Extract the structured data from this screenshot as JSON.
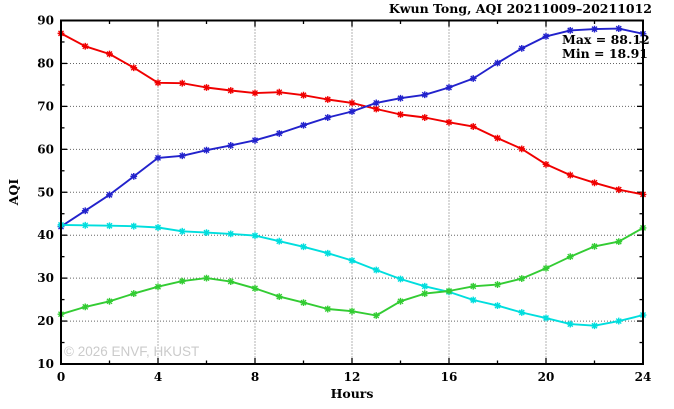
{
  "header": {
    "title": "Kwun Tong, AQI 20211009–20211012"
  },
  "annotation": {
    "max_label": "Max = 88.12",
    "min_label": "Min = 18.91"
  },
  "watermark": "© 2026 ENVF, HKUST",
  "chart_data": {
    "type": "line",
    "title": "Kwun Tong, AQI 20211009–20211012",
    "xlabel": "Hours",
    "ylabel": "AQI",
    "xlim": [
      0,
      24
    ],
    "ylim": [
      10,
      90
    ],
    "grid": true,
    "legend_position": "none",
    "x_major_ticks": [
      0,
      4,
      8,
      12,
      16,
      20,
      24
    ],
    "x_minor_ticks": [
      2,
      6,
      10,
      14,
      18,
      22
    ],
    "y_major_ticks": [
      10,
      20,
      30,
      40,
      50,
      60,
      70,
      80,
      90
    ],
    "y_minor_ticks": [
      15,
      25,
      35,
      45,
      55,
      65,
      75,
      85
    ],
    "x": [
      0,
      1,
      2,
      3,
      4,
      5,
      6,
      7,
      8,
      9,
      10,
      11,
      12,
      13,
      14,
      15,
      16,
      17,
      18,
      19,
      20,
      21,
      22,
      23,
      24
    ],
    "series": [
      {
        "name": "red-series",
        "color": "#f00000",
        "values": [
          87.0,
          84.0,
          82.2,
          79.0,
          75.5,
          75.4,
          74.4,
          73.7,
          73.1,
          73.3,
          72.6,
          71.6,
          70.8,
          69.4,
          68.1,
          67.4,
          66.3,
          65.3,
          62.6,
          60.1,
          56.5,
          54.0,
          52.2,
          50.6,
          49.5
        ]
      },
      {
        "name": "blue-series",
        "color": "#2222cc",
        "values": [
          42.0,
          45.7,
          49.4,
          53.7,
          58.0,
          58.5,
          59.8,
          60.9,
          62.1,
          63.7,
          65.6,
          67.4,
          68.8,
          70.8,
          71.9,
          72.7,
          74.4,
          76.5,
          80.1,
          83.5,
          86.3,
          87.7,
          88.0,
          88.12,
          86.9
        ]
      },
      {
        "name": "cyan-series",
        "color": "#00dede",
        "values": [
          42.4,
          42.3,
          42.2,
          42.1,
          41.8,
          40.9,
          40.6,
          40.3,
          39.9,
          38.6,
          37.3,
          35.8,
          34.1,
          31.9,
          29.8,
          28.1,
          26.8,
          24.9,
          23.6,
          22.0,
          20.7,
          19.3,
          18.91,
          20.0,
          21.4
        ]
      },
      {
        "name": "green-series",
        "color": "#33cc33",
        "values": [
          21.6,
          23.3,
          24.6,
          26.4,
          28.0,
          29.3,
          30.0,
          29.2,
          27.6,
          25.7,
          24.3,
          22.8,
          22.3,
          21.3,
          24.6,
          26.4,
          27.0,
          28.1,
          28.5,
          29.9,
          32.3,
          35.0,
          37.4,
          38.5,
          41.7
        ]
      }
    ],
    "stats": {
      "max": 88.12,
      "min": 18.91
    }
  }
}
